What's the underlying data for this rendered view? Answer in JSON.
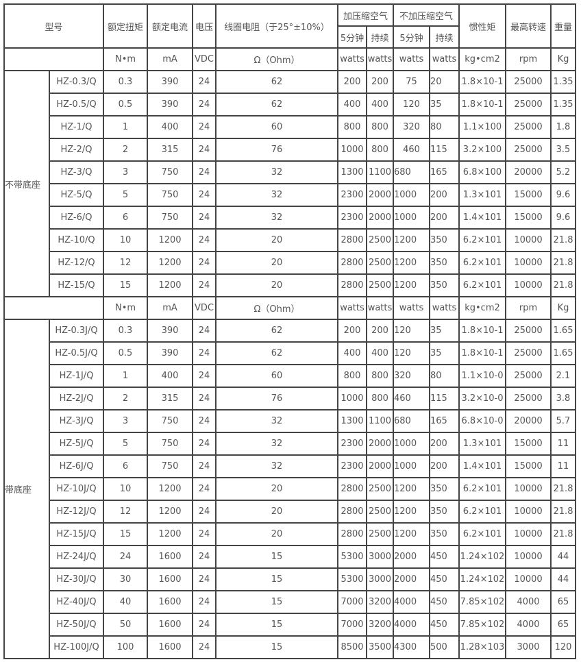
{
  "header": {
    "model": "型号",
    "torque": "额定扭矩",
    "current": "额定电流",
    "voltage": "电压",
    "resistance": "线圈电阻（于25°±10%）",
    "with_air": "加压缩空气",
    "without_air": "不加压缩空气",
    "five_min": "5分钟",
    "continuous": "持续",
    "inertia": "惯性矩",
    "max_speed": "最高转速",
    "weight": "重量"
  },
  "units": [
    "N•m",
    "mA",
    "VDC",
    "Ω（Ohm）",
    "watts",
    "watts",
    "watts",
    "watts",
    "kg•cm2",
    "rpm",
    "Kg"
  ],
  "sections": [
    {
      "label": "不带底座",
      "rows": [
        [
          "HZ-0.3/Q",
          "0.3",
          "390",
          "24",
          "62",
          "200",
          "200",
          "75",
          "20",
          "1.8×10-1",
          "25000",
          "1.35"
        ],
        [
          "HZ-0.5/Q",
          "0.5",
          "390",
          "24",
          "62",
          "400",
          "400",
          "120",
          "35",
          "1.8×10-1",
          "25000",
          "1.35"
        ],
        [
          "HZ-1/Q",
          "1",
          "400",
          "24",
          "60",
          "800",
          "800",
          "320",
          "80",
          "1.1×100",
          "25000",
          "1.8"
        ],
        [
          "HZ-2/Q",
          "2",
          "315",
          "24",
          "76",
          "1000",
          "800",
          "460",
          "115",
          "3.2×100",
          "25000",
          "3.5"
        ],
        [
          "HZ-3/Q",
          "3",
          "750",
          "24",
          "32",
          "1300",
          "1100",
          "680",
          "165",
          "6.8×100",
          "20000",
          "5.2"
        ],
        [
          "HZ-5/Q",
          "5",
          "750",
          "24",
          "32",
          "2300",
          "2000",
          "1000",
          "200",
          "1.3×101",
          "15000",
          "9.6"
        ],
        [
          "HZ-6/Q",
          "6",
          "750",
          "24",
          "32",
          "2300",
          "2000",
          "1000",
          "200",
          "1.4×101",
          "15000",
          "9.6"
        ],
        [
          "HZ-10/Q",
          "10",
          "1200",
          "24",
          "20",
          "2800",
          "2500",
          "1200",
          "350",
          "6.2×101",
          "10000",
          "21.8"
        ],
        [
          "HZ-12/Q",
          "12",
          "1200",
          "24",
          "20",
          "2800",
          "2500",
          "1200",
          "350",
          "6.2×101",
          "10000",
          "21.8"
        ],
        [
          "HZ-15/Q",
          "15",
          "1200",
          "24",
          "20",
          "2800",
          "2500",
          "1200",
          "350",
          "6.2×101",
          "10000",
          "21.8"
        ]
      ]
    },
    {
      "label": "带底座",
      "rows": [
        [
          "HZ-0.3J/Q",
          "0.3",
          "390",
          "24",
          "62",
          "200",
          "200",
          "120",
          "35",
          "1.8×10-1",
          "25000",
          "1.65"
        ],
        [
          "HZ-0.5J/Q",
          "0.5",
          "390",
          "24",
          "62",
          "400",
          "400",
          "120",
          "35",
          "1.8×10-1",
          "25000",
          "1.65"
        ],
        [
          "HZ-1J/Q",
          "1",
          "400",
          "24",
          "60",
          "800",
          "800",
          "320",
          "80",
          "1.1×10-0",
          "25000",
          "2.1"
        ],
        [
          "HZ-2J/Q",
          "2",
          "315",
          "24",
          "76",
          "1000",
          "800",
          "460",
          "115",
          "3.2×10-0",
          "25000",
          "3.8"
        ],
        [
          "HZ-3J/Q",
          "3",
          "750",
          "24",
          "32",
          "1300",
          "1100",
          "680",
          "165",
          "6.8×10-0",
          "20000",
          "5.7"
        ],
        [
          "HZ-5J/Q",
          "5",
          "750",
          "24",
          "32",
          "2300",
          "2000",
          "1000",
          "200",
          "1.3×101",
          "15000",
          "11"
        ],
        [
          "HZ-6J/Q",
          "6",
          "750",
          "24",
          "32",
          "2300",
          "2000",
          "1000",
          "200",
          "1.4×101",
          "15000",
          "11"
        ],
        [
          "HZ-10J/Q",
          "10",
          "1200",
          "24",
          "20",
          "2800",
          "2500",
          "1200",
          "350",
          "6.2×101",
          "10000",
          "21.8"
        ],
        [
          "HZ-12J/Q",
          "12",
          "1200",
          "24",
          "20",
          "2800",
          "2500",
          "1200",
          "350",
          "6.2×101",
          "10000",
          "21.8"
        ],
        [
          "HZ-15J/Q",
          "15",
          "1200",
          "24",
          "20",
          "2800",
          "2500",
          "1200",
          "350",
          "6.2×101",
          "10000",
          "21.8"
        ],
        [
          "HZ-24J/Q",
          "24",
          "1600",
          "24",
          "15",
          "5300",
          "3000",
          "2000",
          "450",
          "1.24×102",
          "10000",
          "44"
        ],
        [
          "HZ-30J/Q",
          "30",
          "1600",
          "24",
          "15",
          "5300",
          "3000",
          "2000",
          "450",
          "1.24×102",
          "10000",
          "44"
        ],
        [
          "HZ-40J/Q",
          "40",
          "1600",
          "24",
          "15",
          "7000",
          "3200",
          "4000",
          "450",
          "7.85×102",
          "4000",
          "65"
        ],
        [
          "HZ-50J/Q",
          "50",
          "1600",
          "24",
          "15",
          "7000",
          "3200",
          "4000",
          "450",
          "7.85×102",
          "4000",
          "65"
        ],
        [
          "HZ-100J/Q",
          "100",
          "1600",
          "24",
          "15",
          "8500",
          "3500",
          "4300",
          "500",
          "1.28×103",
          "3000",
          "120"
        ]
      ]
    }
  ]
}
